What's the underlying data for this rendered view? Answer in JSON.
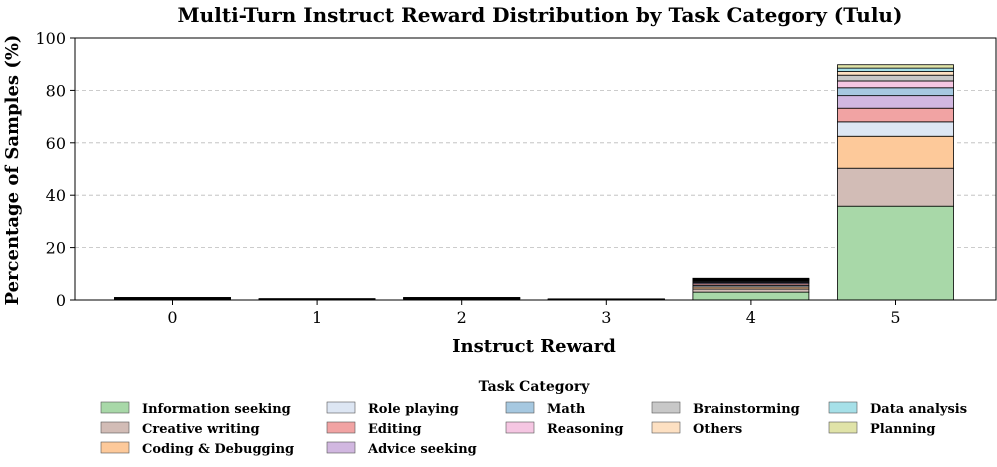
{
  "chart_data": {
    "type": "bar",
    "stacked": true,
    "title": "Multi-Turn Instruct Reward Distribution by Task Category (Tulu)",
    "xlabel": "Instruct Reward",
    "ylabel": "Percentage of Samples (%)",
    "categories": [
      "0",
      "1",
      "2",
      "3",
      "4",
      "5"
    ],
    "ylim": [
      0,
      100
    ],
    "yticks": [
      0,
      20,
      40,
      60,
      80,
      100
    ],
    "grid": "horizontal dashed",
    "legend_title": "Task Category",
    "legend_position": "bottom",
    "series": [
      {
        "name": "Information seeking",
        "color": "#a8d8a8",
        "values": [
          0.35,
          0.15,
          0.35,
          0.1,
          3.0,
          35.8
        ]
      },
      {
        "name": "Creative writing",
        "color": "#d2bcb6",
        "values": [
          0.1,
          0.05,
          0.1,
          0.05,
          1.2,
          14.5
        ]
      },
      {
        "name": "Coding & Debugging",
        "color": "#fdc99a",
        "values": [
          0.1,
          0.05,
          0.1,
          0.05,
          0.8,
          12.2
        ]
      },
      {
        "name": "Role playing",
        "color": "#dde6f3",
        "values": [
          0.05,
          0.03,
          0.05,
          0.03,
          0.6,
          5.5
        ]
      },
      {
        "name": "Editing",
        "color": "#f1a3a3",
        "values": [
          0.05,
          0.03,
          0.05,
          0.03,
          0.6,
          5.2
        ]
      },
      {
        "name": "Advice seeking",
        "color": "#d1b7e0",
        "values": [
          0.05,
          0.03,
          0.05,
          0.03,
          0.5,
          4.8
        ]
      },
      {
        "name": "Math",
        "color": "#a6c8e0",
        "values": [
          0.05,
          0.03,
          0.05,
          0.03,
          0.4,
          3.0
        ]
      },
      {
        "name": "Reasoning",
        "color": "#f5c6e2",
        "values": [
          0.05,
          0.03,
          0.05,
          0.03,
          0.3,
          2.6
        ]
      },
      {
        "name": "Brainstorming",
        "color": "#c8c8c8",
        "values": [
          0.05,
          0.03,
          0.05,
          0.03,
          0.3,
          2.2
        ]
      },
      {
        "name": "Others",
        "color": "#fde0c2",
        "values": [
          0.03,
          0.02,
          0.03,
          0.02,
          0.2,
          1.4
        ]
      },
      {
        "name": "Data analysis",
        "color": "#a6e0e8",
        "values": [
          0.03,
          0.02,
          0.03,
          0.02,
          0.2,
          1.3
        ]
      },
      {
        "name": "Planning",
        "color": "#e0e3a8",
        "values": [
          0.03,
          0.02,
          0.03,
          0.02,
          0.2,
          1.3
        ]
      }
    ],
    "legend_order": [
      "Information seeking",
      "Creative writing",
      "Coding & Debugging",
      "Role playing",
      "Editing",
      "Advice seeking",
      "Math",
      "Reasoning",
      "Brainstorming",
      "Others",
      "Data analysis",
      "Planning"
    ]
  }
}
